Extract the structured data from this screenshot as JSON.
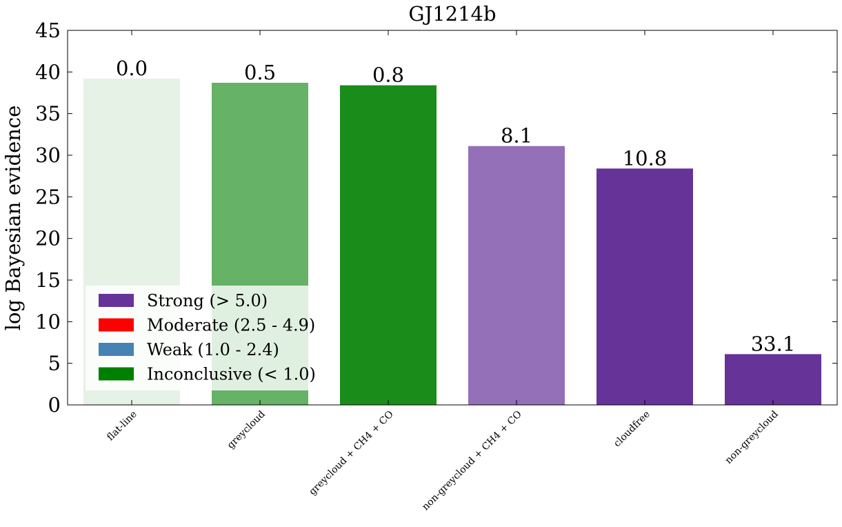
{
  "chart_data": {
    "type": "bar",
    "title": "GJ1214b",
    "xlabel": "",
    "ylabel": "log Bayesian evidence",
    "ylim": [
      0,
      45
    ],
    "yticks": [
      0,
      5,
      10,
      15,
      20,
      25,
      30,
      35,
      40,
      45
    ],
    "grid": false,
    "legend_position": "lower-left",
    "categories": [
      "flat-line",
      "greycloud",
      "greycloud + CH4 + CO",
      "non-greycloud + CH4 + CO",
      "cloudfree",
      "non-greycloud"
    ],
    "values": [
      39.2,
      38.7,
      38.4,
      31.1,
      28.4,
      6.1
    ],
    "bar_labels": [
      "0.0",
      "0.5",
      "0.8",
      "8.1",
      "10.8",
      "33.1"
    ],
    "bar_colors": [
      "#e5f2e5",
      "#66b266",
      "#1a8c1a",
      "#9370b8",
      "#663399",
      "#663399"
    ],
    "legend": [
      {
        "label": "Strong (> 5.0)",
        "color": "#663399"
      },
      {
        "label": "Moderate (2.5 - 4.9)",
        "color": "#ff0000"
      },
      {
        "label": "Weak (1.0 - 2.4)",
        "color": "#4682b4"
      },
      {
        "label": "Inconclusive (< 1.0)",
        "color": "#008000"
      }
    ]
  }
}
